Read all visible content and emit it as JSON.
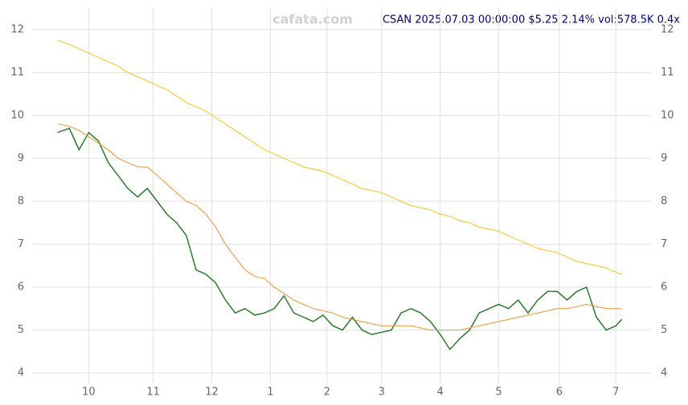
{
  "chart_data": {
    "type": "line",
    "title": "CSAN 2025.07.03 00:00:00 $5.25 2.14% vol:578.5K 0.4x",
    "watermark": "cafata.com",
    "x": [
      -16,
      -10,
      -5,
      0,
      5,
      10,
      15,
      20,
      25,
      30,
      35,
      40,
      45,
      50,
      55,
      60,
      65,
      70,
      75,
      80,
      85,
      90,
      95,
      100,
      105,
      110,
      115,
      120,
      125,
      130,
      135,
      140,
      145,
      150,
      155,
      160,
      165,
      170,
      175,
      180,
      185,
      190,
      195,
      200,
      205,
      210,
      215,
      220,
      225,
      230,
      235,
      240,
      245,
      250,
      255,
      260,
      265,
      270,
      273
    ],
    "series": [
      {
        "color": "#2a7a2a",
        "values": [
          9.6,
          9.7,
          9.2,
          9.6,
          9.4,
          8.9,
          8.6,
          8.3,
          8.1,
          8.3,
          8.0,
          7.7,
          7.5,
          7.2,
          6.4,
          6.3,
          6.1,
          5.7,
          5.4,
          5.5,
          5.35,
          5.4,
          5.5,
          5.8,
          5.4,
          5.3,
          5.2,
          5.35,
          5.1,
          5.0,
          5.3,
          5.0,
          4.9,
          4.95,
          5.0,
          5.4,
          5.5,
          5.4,
          5.2,
          4.9,
          4.55,
          4.8,
          5.0,
          5.4,
          5.5,
          5.6,
          5.5,
          5.7,
          5.4,
          5.7,
          5.9,
          5.9,
          5.7,
          5.9,
          6.0,
          5.3,
          5.0,
          5.1,
          5.25
        ]
      },
      {
        "color": "#f5c518",
        "values": [
          11.75,
          11.65,
          11.55,
          11.45,
          11.35,
          11.25,
          11.15,
          11.0,
          10.9,
          10.8,
          10.7,
          10.6,
          10.45,
          10.3,
          10.2,
          10.1,
          9.95,
          9.8,
          9.65,
          9.5,
          9.35,
          9.2,
          9.1,
          9.0,
          8.9,
          8.8,
          8.75,
          8.7,
          8.6,
          8.5,
          8.4,
          8.3,
          8.25,
          8.2,
          8.1,
          8.0,
          7.9,
          7.85,
          7.8,
          7.7,
          7.65,
          7.55,
          7.5,
          7.4,
          7.35,
          7.3,
          7.2,
          7.1,
          7.0,
          6.9,
          6.85,
          6.8,
          6.7,
          6.6,
          6.55,
          6.5,
          6.45,
          6.35,
          6.3
        ]
      },
      {
        "color": "#e8962a",
        "values": [
          9.8,
          9.75,
          9.65,
          9.5,
          9.35,
          9.2,
          9.0,
          8.9,
          8.8,
          8.8,
          8.6,
          8.4,
          8.2,
          8.0,
          7.9,
          7.7,
          7.4,
          7.0,
          6.7,
          6.4,
          6.25,
          6.2,
          6.0,
          5.85,
          5.7,
          5.6,
          5.5,
          5.45,
          5.4,
          5.3,
          5.25,
          5.2,
          5.15,
          5.1,
          5.1,
          5.1,
          5.1,
          5.05,
          5.0,
          5.0,
          5.0,
          5.0,
          5.05,
          5.1,
          5.15,
          5.2,
          5.25,
          5.3,
          5.35,
          5.4,
          5.45,
          5.5,
          5.5,
          5.55,
          5.6,
          5.55,
          5.5,
          5.5,
          5.5
        ]
      }
    ],
    "xlim": [
      -29,
      288
    ],
    "ylim": [
      3.76,
      12.5
    ],
    "xticks": [
      {
        "value": 0,
        "label": "10"
      },
      {
        "value": 33,
        "label": "11"
      },
      {
        "value": 63,
        "label": "12"
      },
      {
        "value": 93,
        "label": "1"
      },
      {
        "value": 122,
        "label": "2"
      },
      {
        "value": 150,
        "label": "3"
      },
      {
        "value": 180,
        "label": "4"
      },
      {
        "value": 210,
        "label": "5"
      },
      {
        "value": 241,
        "label": "6"
      },
      {
        "value": 270,
        "label": "7"
      }
    ],
    "yticks": [
      4,
      5,
      6,
      7,
      8,
      9,
      10,
      11,
      12
    ],
    "grid": true
  }
}
